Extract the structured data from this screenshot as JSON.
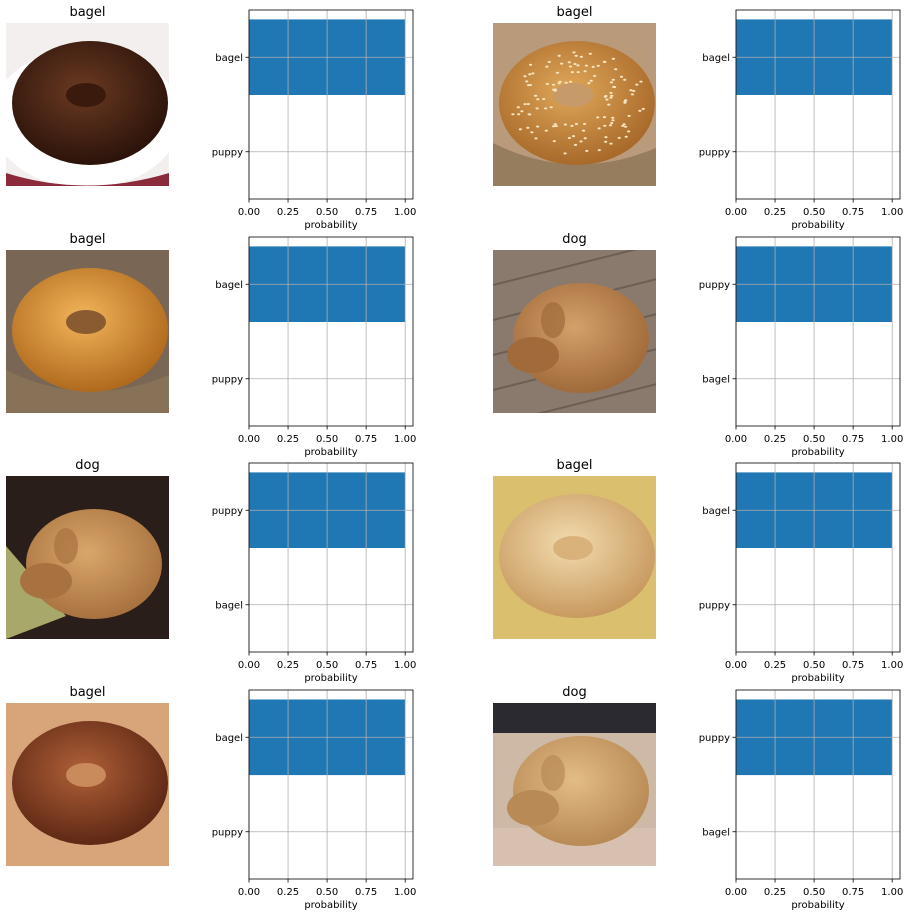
{
  "panels": [
    {
      "title": "bagel",
      "image": "bagel-photo-dark",
      "chart_data": {
        "type": "bar",
        "orientation": "horizontal",
        "categories": [
          "bagel",
          "puppy"
        ],
        "values": [
          1.0,
          0.0
        ],
        "xlabel": "probability",
        "xlim": [
          0,
          1.05
        ],
        "xticks": [
          "0.00",
          "0.25",
          "0.50",
          "0.75",
          "1.00"
        ],
        "grid": true,
        "bar_color": "#1f77b4"
      }
    },
    {
      "title": "bagel",
      "image": "bagel-photo-sesame",
      "chart_data": {
        "type": "bar",
        "orientation": "horizontal",
        "categories": [
          "bagel",
          "puppy"
        ],
        "values": [
          1.0,
          0.0
        ],
        "xlabel": "probability",
        "xlim": [
          0,
          1.05
        ],
        "xticks": [
          "0.00",
          "0.25",
          "0.50",
          "0.75",
          "1.00"
        ],
        "grid": true,
        "bar_color": "#1f77b4"
      }
    },
    {
      "title": "bagel",
      "image": "bagel-photo-golden",
      "chart_data": {
        "type": "bar",
        "orientation": "horizontal",
        "categories": [
          "bagel",
          "puppy"
        ],
        "values": [
          1.0,
          0.0
        ],
        "xlabel": "probability",
        "xlim": [
          0,
          1.05
        ],
        "xticks": [
          "0.00",
          "0.25",
          "0.50",
          "0.75",
          "1.00"
        ],
        "grid": true,
        "bar_color": "#1f77b4"
      }
    },
    {
      "title": "dog",
      "image": "dog-photo-curled-floor",
      "chart_data": {
        "type": "bar",
        "orientation": "horizontal",
        "categories": [
          "puppy",
          "bagel"
        ],
        "values": [
          1.0,
          0.0
        ],
        "xlabel": "probability",
        "xlim": [
          0,
          1.05
        ],
        "xticks": [
          "0.00",
          "0.25",
          "0.50",
          "0.75",
          "1.00"
        ],
        "grid": true,
        "bar_color": "#1f77b4"
      }
    },
    {
      "title": "dog",
      "image": "dog-photo-sleeping-couch",
      "chart_data": {
        "type": "bar",
        "orientation": "horizontal",
        "categories": [
          "puppy",
          "bagel"
        ],
        "values": [
          1.0,
          0.0
        ],
        "xlabel": "probability",
        "xlim": [
          0,
          1.05
        ],
        "xticks": [
          "0.00",
          "0.25",
          "0.50",
          "0.75",
          "1.00"
        ],
        "grid": true,
        "bar_color": "#1f77b4"
      }
    },
    {
      "title": "bagel",
      "image": "bagel-photo-plain",
      "chart_data": {
        "type": "bar",
        "orientation": "horizontal",
        "categories": [
          "bagel",
          "puppy"
        ],
        "values": [
          1.0,
          0.0
        ],
        "xlabel": "probability",
        "xlim": [
          0,
          1.05
        ],
        "xticks": [
          "0.00",
          "0.25",
          "0.50",
          "0.75",
          "1.00"
        ],
        "grid": true,
        "bar_color": "#1f77b4"
      }
    },
    {
      "title": "bagel",
      "image": "bagel-photo-pretzel",
      "chart_data": {
        "type": "bar",
        "orientation": "horizontal",
        "categories": [
          "bagel",
          "puppy"
        ],
        "values": [
          1.0,
          0.0
        ],
        "xlabel": "probability",
        "xlim": [
          0,
          1.05
        ],
        "xticks": [
          "0.00",
          "0.25",
          "0.50",
          "0.75",
          "1.00"
        ],
        "grid": true,
        "bar_color": "#1f77b4"
      }
    },
    {
      "title": "dog",
      "image": "dog-photo-sleeping-blanket",
      "chart_data": {
        "type": "bar",
        "orientation": "horizontal",
        "categories": [
          "puppy",
          "bagel"
        ],
        "values": [
          1.0,
          0.0
        ],
        "xlabel": "probability",
        "xlim": [
          0,
          1.05
        ],
        "xticks": [
          "0.00",
          "0.25",
          "0.50",
          "0.75",
          "1.00"
        ],
        "grid": true,
        "bar_color": "#1f77b4"
      }
    }
  ]
}
